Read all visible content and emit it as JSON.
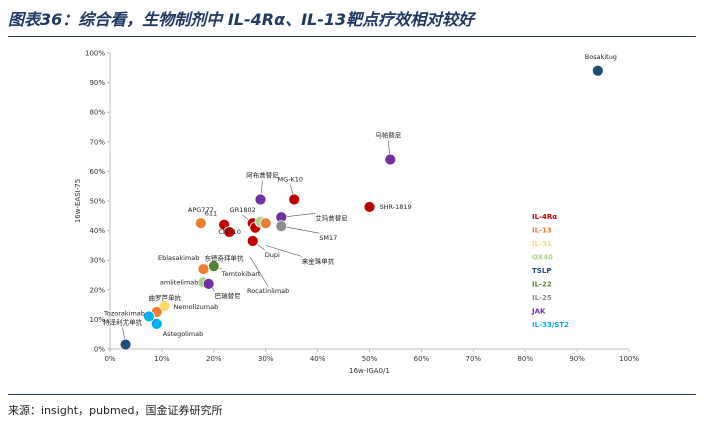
{
  "header": {
    "title": "图表36：综合看，生物制剂中 IL-4Rα、IL-13靶点疗效相对较好"
  },
  "footer": {
    "source": "来源：insight，pubmed，国金证券研究所"
  },
  "chart_data": {
    "type": "scatter",
    "xlabel": "16w-IGA0/1",
    "ylabel": "16w-EASI-75",
    "xlim": [
      0,
      100
    ],
    "ylim": [
      0,
      100
    ],
    "xticks": [
      "0%",
      "10%",
      "20%",
      "30%",
      "40%",
      "50%",
      "60%",
      "70%",
      "80%",
      "90%",
      "100%"
    ],
    "yticks": [
      "0%",
      "10%",
      "20%",
      "30%",
      "40%",
      "50%",
      "60%",
      "70%",
      "80%",
      "90%",
      "100%"
    ],
    "grid": false,
    "legend_position": "right",
    "legend": [
      {
        "name": "IL-4Rα",
        "color": "#c00000"
      },
      {
        "name": "IL-13",
        "color": "#ed7d31"
      },
      {
        "name": "IL-31",
        "color": "#ffd966"
      },
      {
        "name": "OX40",
        "color": "#a9d18e"
      },
      {
        "name": "TSLP",
        "color": "#1f4e79"
      },
      {
        "name": "IL-22",
        "color": "#548235"
      },
      {
        "name": "IL-25",
        "color": "#8c8c8c"
      },
      {
        "name": "JAK",
        "color": "#7030a0"
      },
      {
        "name": "IL-33/ST2",
        "color": "#00b0f0"
      }
    ],
    "points": [
      {
        "label": "Bosakitug",
        "x": 94,
        "y": 94,
        "target": "TSLP"
      },
      {
        "label": "乌帕替尼",
        "x": 54,
        "y": 64,
        "target": "JAK"
      },
      {
        "label": "SHR-1819",
        "x": 50,
        "y": 48,
        "target": "IL-4Rα"
      },
      {
        "label": "MG-K10",
        "x": 35.5,
        "y": 50.5,
        "target": "IL-4Rα"
      },
      {
        "label": "阿布昔替尼",
        "x": 29,
        "y": 50.5,
        "target": "JAK"
      },
      {
        "label": "APG777",
        "x": 17.5,
        "y": 42.5,
        "target": "IL-13"
      },
      {
        "label": "611",
        "x": 22,
        "y": 42,
        "target": "IL-4Rα"
      },
      {
        "label": "GR1802",
        "x": 27.5,
        "y": 42.5,
        "target": "IL-4Rα"
      },
      {
        "label": "",
        "x": 28,
        "y": 41,
        "target": "IL-4Rα"
      },
      {
        "label": "",
        "x": 29,
        "y": 43,
        "target": "OX40"
      },
      {
        "label": "",
        "x": 30,
        "y": 42.5,
        "target": "IL-13"
      },
      {
        "label": "CM310",
        "x": 23,
        "y": 39.5,
        "target": "IL-4Rα"
      },
      {
        "label": "艾玛昔替尼",
        "x": 33,
        "y": 44.5,
        "target": "JAK"
      },
      {
        "label": "SM17",
        "x": 33,
        "y": 41.5,
        "target": "IL-25"
      },
      {
        "label": "Dupi",
        "x": 27.5,
        "y": 36.5,
        "target": "IL-4Rα"
      },
      {
        "label": "东德奇拜单抗",
        "x": 24,
        "y": 36,
        "target": ""
      },
      {
        "label": "来金珠单抗",
        "x": 30,
        "y": 35,
        "target": ""
      },
      {
        "label": "Rocatinlimab",
        "x": 27,
        "y": 31,
        "target": ""
      },
      {
        "label": "Temtokibart",
        "x": 20,
        "y": 28,
        "target": "IL-22"
      },
      {
        "label": "Eblasakimab",
        "x": 18,
        "y": 27,
        "target": "IL-13"
      },
      {
        "label": "amlitelimab",
        "x": 18,
        "y": 22.5,
        "target": "OX40"
      },
      {
        "label": "巴瑞替尼",
        "x": 19,
        "y": 22,
        "target": "JAK"
      },
      {
        "label": "Nemolizumab",
        "x": 10.5,
        "y": 14.5,
        "target": "IL-31"
      },
      {
        "label": "曲罗芦单抗",
        "x": 9,
        "y": 12.5,
        "target": "IL-13"
      },
      {
        "label": "Tozorakimab",
        "x": 7.5,
        "y": 11,
        "target": "IL-33/ST2"
      },
      {
        "label": "Astegolimab",
        "x": 9,
        "y": 8.5,
        "target": "IL-33/ST2"
      },
      {
        "label": "特泽利尤单抗",
        "x": 3,
        "y": 1.5,
        "target": "TSLP"
      }
    ]
  }
}
